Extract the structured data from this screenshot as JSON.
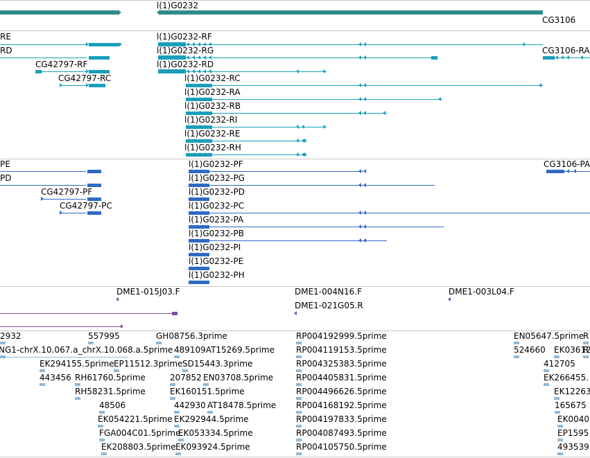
{
  "colors": {
    "gene": "#2e8b8b",
    "transcript": "#1a9fba",
    "protein": "#2f6ac4",
    "clone": "#7a4fa3",
    "est": "#8fb8d8",
    "separator": "#c8c8c8"
  },
  "genes_track": {
    "labels": [
      "l(1)G0232",
      "CG3106"
    ]
  },
  "transcripts_track": {
    "labels": [
      "RE",
      "RD",
      "CG42797-RF",
      "CG42797-RC",
      "l(1)G0232-RF",
      "l(1)G0232-RG",
      "l(1)G0232-RD",
      "l(1)G0232-RC",
      "l(1)G0232-RA",
      "l(1)G0232-RB",
      "l(1)G0232-RI",
      "l(1)G0232-RE",
      "l(1)G0232-RH",
      "CG3106-RA"
    ]
  },
  "proteins_track": {
    "labels": [
      "PE",
      "PD",
      "CG42797-PF",
      "CG42797-PC",
      "l(1)G0232-PF",
      "l(1)G0232-PG",
      "l(1)G0232-PD",
      "l(1)G0232-PC",
      "l(1)G0232-PA",
      "l(1)G0232-PB",
      "l(1)G0232-PI",
      "l(1)G0232-PE",
      "l(1)G0232-PH",
      "CG3106-PA"
    ]
  },
  "clones_track": {
    "labels": [
      "DME1-015J03.F",
      "DME1-004N16.F",
      "DME1-021G05.R",
      "DME1-003L04.F"
    ]
  },
  "est_track": {
    "labels": [
      "2932",
      "557995",
      "GH08756.3prime",
      "NG1-chrX.10.067.a_chrX.10.068.a.5prime",
      "489109AT15269.5prime",
      "EK294155.5prime",
      "EP11512.3prime",
      "SD15443.3prime",
      "443456",
      "RH61760.5prime",
      "207852",
      "EN03708.5prime",
      "RH58231.5prime",
      "EK160151.5prime",
      "48506",
      "442930",
      "AT18478.5prime",
      "EK054221.5prime",
      "EK292944.5prime",
      "FGA004C01.5prime",
      "EK053334.5prime",
      "EK208803.5prime",
      "EK093924.5prime",
      "RP004192999.5prime",
      "RP004119153.5prime",
      "RP004325383.5prime",
      "RP004405831.5prime",
      "RP004496626.5prime",
      "RP004168192.5prime",
      "RP004197833.5prime",
      "RP004087493.5prime",
      "RP004105750.5prime",
      "EN05647.5prime",
      "524660",
      "EK03612",
      "R",
      "412705",
      "R",
      "EK266455.",
      "EK12263",
      "165675",
      "EK0040",
      "EP1595",
      "493539"
    ]
  }
}
